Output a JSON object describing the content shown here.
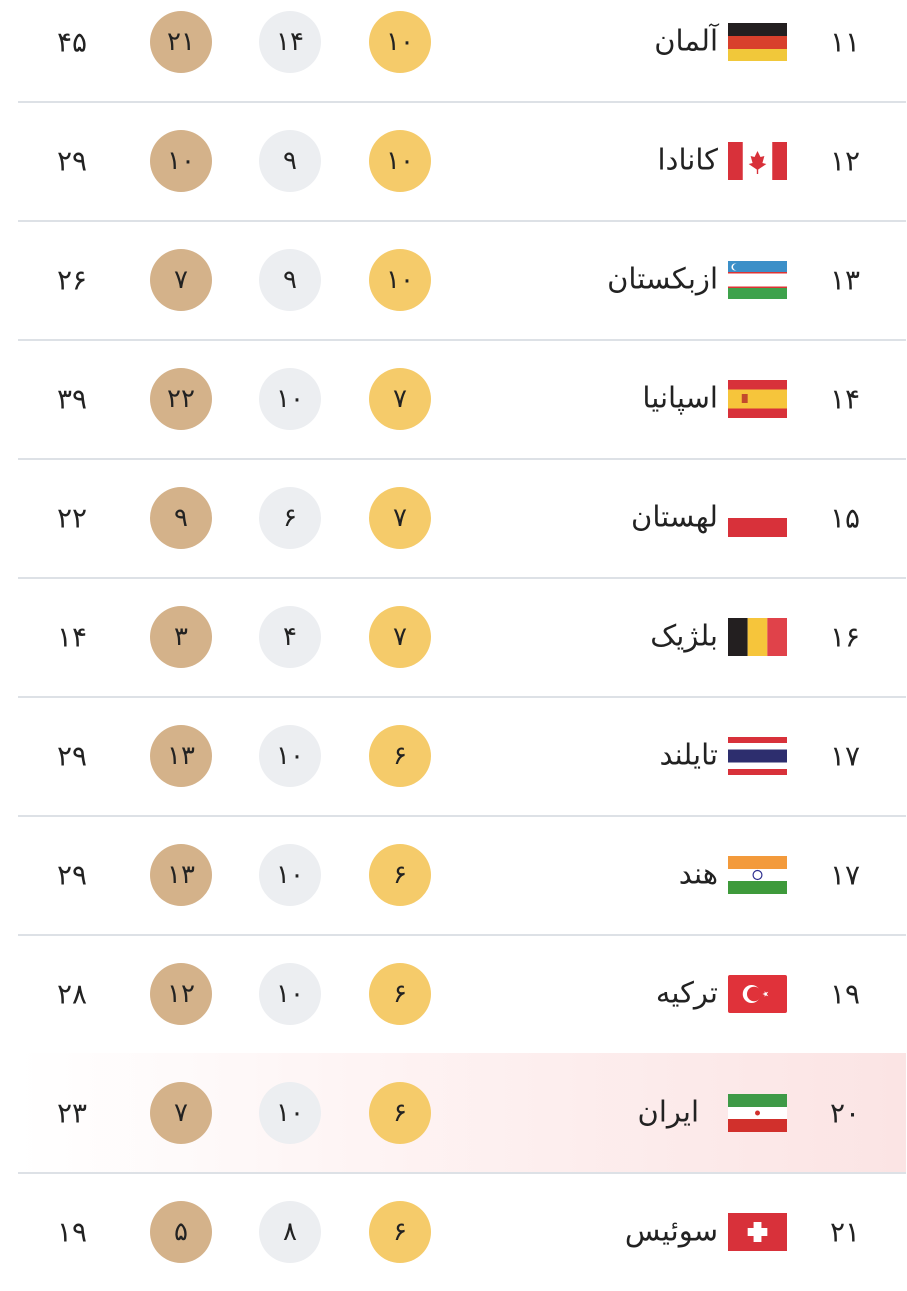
{
  "colors": {
    "gold": "#f5cb6a",
    "silver": "#eceef1",
    "bronze": "#d4b28a",
    "highlight": "#fbe4e4",
    "divider": "#dde1e6"
  },
  "rows": [
    {
      "rank": "۱۱",
      "name": "آلمان",
      "flag": "germany-flag",
      "code": "DE",
      "gold": "۱۰",
      "silver": "۱۴",
      "bronze": "۲۱",
      "total": "۴۵"
    },
    {
      "rank": "۱۲",
      "name": "کانادا",
      "flag": "canada-flag",
      "code": "CA",
      "gold": "۱۰",
      "silver": "۹",
      "bronze": "۱۰",
      "total": "۲۹"
    },
    {
      "rank": "۱۳",
      "name": "ازبکستان",
      "flag": "uzbekistan-flag",
      "code": "UZ",
      "gold": "۱۰",
      "silver": "۹",
      "bronze": "۷",
      "total": "۲۶"
    },
    {
      "rank": "۱۴",
      "name": "اسپانیا",
      "flag": "spain-flag",
      "code": "ES",
      "gold": "۷",
      "silver": "۱۰",
      "bronze": "۲۲",
      "total": "۳۹"
    },
    {
      "rank": "۱۵",
      "name": "لهستان",
      "flag": "poland-flag",
      "code": "PL",
      "gold": "۷",
      "silver": "۶",
      "bronze": "۹",
      "total": "۲۲"
    },
    {
      "rank": "۱۶",
      "name": "بلژیک",
      "flag": "belgium-flag",
      "code": "BE",
      "gold": "۷",
      "silver": "۴",
      "bronze": "۳",
      "total": "۱۴"
    },
    {
      "rank": "۱۷",
      "name": "تایلند",
      "flag": "thailand-flag",
      "code": "TH",
      "gold": "۶",
      "silver": "۱۰",
      "bronze": "۱۳",
      "total": "۲۹"
    },
    {
      "rank": "۱۷",
      "name": "هند",
      "flag": "india-flag",
      "code": "IN",
      "gold": "۶",
      "silver": "۱۰",
      "bronze": "۱۳",
      "total": "۲۹"
    },
    {
      "rank": "۱۹",
      "name": "ترکیه",
      "flag": "turkey-flag",
      "code": "TR",
      "gold": "۶",
      "silver": "۱۰",
      "bronze": "۱۲",
      "total": "۲۸"
    },
    {
      "rank": "۲۰",
      "name": "ایران",
      "flag": "iran-flag",
      "code": "IR",
      "gold": "۶",
      "silver": "۱۰",
      "bronze": "۷",
      "total": "۲۳",
      "highlighted": true
    },
    {
      "rank": "۲۱",
      "name": "سوئیس",
      "flag": "switzerland-flag",
      "code": "CH",
      "gold": "۶",
      "silver": "۸",
      "bronze": "۵",
      "total": "۱۹"
    }
  ]
}
